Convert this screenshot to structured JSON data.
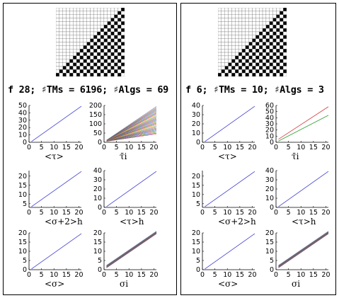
{
  "panels": [
    {
      "title": "f 28; ♯TMs = 6196; ♯Algs = 69",
      "plots": [
        {
          "label": "<τ>",
          "type": "single",
          "y_ticks": [
            0,
            10,
            20,
            30,
            40,
            50
          ],
          "ymax": 50,
          "x_ticks": [
            0,
            5,
            10,
            15,
            20
          ]
        },
        {
          "label": "τ̄i",
          "type": "fan",
          "y_ticks": [
            0,
            50,
            100,
            150,
            200
          ],
          "ymax": 200,
          "x_ticks": [
            0,
            5,
            10,
            15,
            20
          ]
        },
        {
          "label": "<σ+2>h",
          "type": "single",
          "y_ticks": [
            5,
            10,
            15,
            20
          ],
          "ymin": 3,
          "ymax": 23,
          "x_ticks": [
            0,
            5,
            10,
            15,
            20
          ]
        },
        {
          "label": "<τ>h",
          "type": "single",
          "y_ticks": [
            0,
            10,
            20,
            30,
            40
          ],
          "ymax": 40,
          "x_ticks": [
            0,
            5,
            10,
            15,
            20
          ]
        },
        {
          "label": "<σ>",
          "type": "single",
          "y_ticks": [
            0,
            5,
            10,
            15,
            20
          ],
          "ymax": 20,
          "x_ticks": [
            0,
            5,
            10,
            15,
            20
          ]
        },
        {
          "label": "σi",
          "type": "band",
          "y_ticks": [
            0,
            5,
            10,
            15,
            20
          ],
          "ymax": 20,
          "x_ticks": [
            0,
            5,
            10,
            15,
            20
          ]
        }
      ]
    },
    {
      "title": "f 6; ♯TMs = 10; ♯Algs = 3",
      "plots": [
        {
          "label": "<τ>",
          "type": "single",
          "y_ticks": [
            0,
            10,
            20,
            30,
            40
          ],
          "ymax": 40,
          "x_ticks": [
            0,
            5,
            10,
            15,
            20
          ]
        },
        {
          "label": "τ̄i",
          "type": "two",
          "y_ticks": [
            0,
            10,
            20,
            30,
            40,
            50,
            60
          ],
          "ymax": 60,
          "x_ticks": [
            0,
            5,
            10,
            15,
            20
          ]
        },
        {
          "label": "<σ+2>h",
          "type": "single",
          "y_ticks": [
            5,
            10,
            15,
            20
          ],
          "ymin": 3,
          "ymax": 23,
          "x_ticks": [
            0,
            5,
            10,
            15,
            20
          ]
        },
        {
          "label": "<τ>h",
          "type": "single",
          "y_ticks": [
            0,
            10,
            20,
            30,
            40
          ],
          "ymax": 40,
          "x_ticks": [
            0,
            5,
            10,
            15,
            20
          ]
        },
        {
          "label": "<σ>",
          "type": "single",
          "y_ticks": [
            0,
            5,
            10,
            15,
            20
          ],
          "ymax": 20,
          "x_ticks": [
            0,
            5,
            10,
            15,
            20
          ]
        },
        {
          "label": "σi",
          "type": "band",
          "y_ticks": [
            0,
            5,
            10,
            15,
            20
          ],
          "ymax": 20,
          "x_ticks": [
            0,
            5,
            10,
            15,
            20
          ]
        }
      ]
    }
  ],
  "colors": {
    "line": "#3b3bd6",
    "axis": "#000000"
  }
}
